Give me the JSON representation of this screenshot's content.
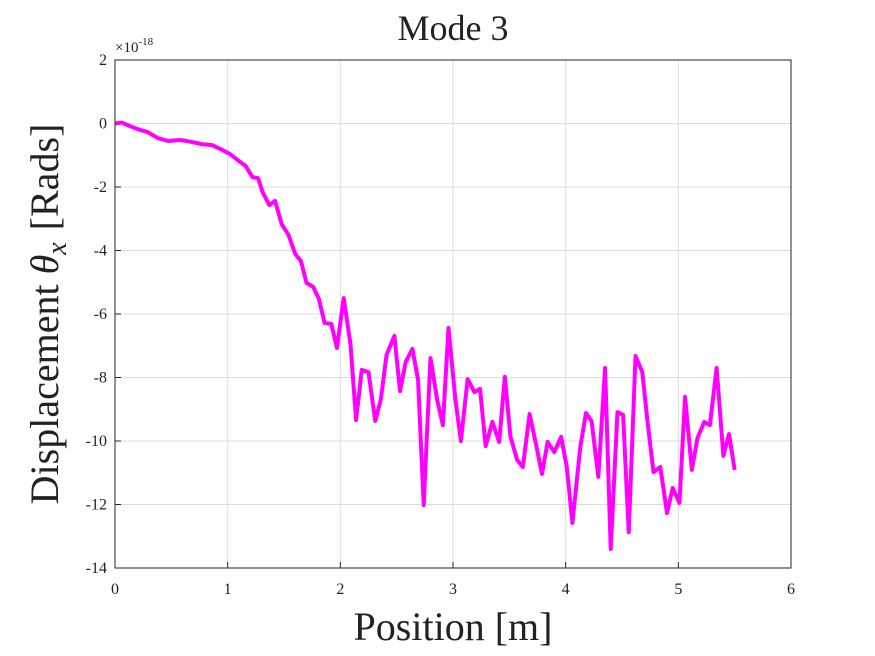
{
  "chart_data": {
    "type": "line",
    "title": "Mode 3",
    "xlabel": "Position [m]",
    "ylabel": {
      "text": "Displacement",
      "symbol": "θ",
      "subscript": "x",
      "unit": "[Rads]"
    },
    "y_multiplier": {
      "base": "×10",
      "exponent": "-18"
    },
    "color": "#ff00ff",
    "grid": true,
    "xlim": [
      0,
      6
    ],
    "xticks": [
      0,
      1,
      2,
      3,
      4,
      5,
      6
    ],
    "ylim": [
      -14,
      2
    ],
    "yticks": [
      -14,
      -12,
      -10,
      -8,
      -6,
      -4,
      -2,
      0,
      2
    ],
    "x": [
      0,
      0.06,
      0.13,
      0.22,
      0.29,
      0.38,
      0.47,
      0.58,
      0.68,
      0.77,
      0.86,
      0.95,
      1.02,
      1.11,
      1.16,
      1.22,
      1.27,
      1.31,
      1.37,
      1.42,
      1.48,
      1.54,
      1.6,
      1.65,
      1.7,
      1.76,
      1.81,
      1.86,
      1.92,
      1.97,
      2.03,
      2.09,
      2.14,
      2.19,
      2.25,
      2.31,
      2.36,
      2.41,
      2.48,
      2.53,
      2.58,
      2.64,
      2.69,
      2.74,
      2.8,
      2.86,
      2.91,
      2.96,
      3.02,
      3.07,
      3.13,
      3.19,
      3.24,
      3.29,
      3.35,
      3.41,
      3.46,
      3.51,
      3.57,
      3.62,
      3.68,
      3.74,
      3.79,
      3.84,
      3.9,
      3.96,
      4.01,
      4.06,
      4.13,
      4.18,
      4.23,
      4.29,
      4.35,
      4.4,
      4.46,
      4.51,
      4.56,
      4.62,
      4.68,
      4.73,
      4.78,
      4.84,
      4.9,
      4.95,
      5.01,
      5.06,
      5.12,
      5.17,
      5.23,
      5.28,
      5.34,
      5.4,
      5.45,
      5.5
    ],
    "values": [
      0,
      0.03,
      -0.08,
      -0.2,
      -0.27,
      -0.46,
      -0.55,
      -0.52,
      -0.58,
      -0.65,
      -0.68,
      -0.83,
      -0.96,
      -1.21,
      -1.34,
      -1.69,
      -1.72,
      -2.16,
      -2.57,
      -2.44,
      -3.17,
      -3.51,
      -4.11,
      -4.33,
      -5.02,
      -5.15,
      -5.53,
      -6.28,
      -6.31,
      -7.07,
      -5.5,
      -6.94,
      -9.34,
      -7.76,
      -7.83,
      -9.37,
      -8.68,
      -7.29,
      -6.69,
      -8.43,
      -7.51,
      -7.1,
      -8.08,
      -12.02,
      -7.39,
      -8.71,
      -9.5,
      -6.44,
      -8.65,
      -10,
      -8.05,
      -8.46,
      -8.36,
      -10.16,
      -9.4,
      -10.03,
      -7.98,
      -9.87,
      -10.6,
      -10.82,
      -9.15,
      -10.16,
      -11.04,
      -10.03,
      -10.35,
      -9.87,
      -10.82,
      -12.58,
      -10.19,
      -9.12,
      -9.37,
      -11.13,
      -7.7,
      -13.4,
      -9.09,
      -9.18,
      -12.87,
      -7.32,
      -7.83,
      -9.5,
      -10.98,
      -10.82,
      -12.27,
      -11.48,
      -11.95,
      -8.61,
      -10.91,
      -9.91,
      -9.4,
      -9.5,
      -7.7,
      -10.47,
      -9.78,
      -10.91
    ]
  }
}
